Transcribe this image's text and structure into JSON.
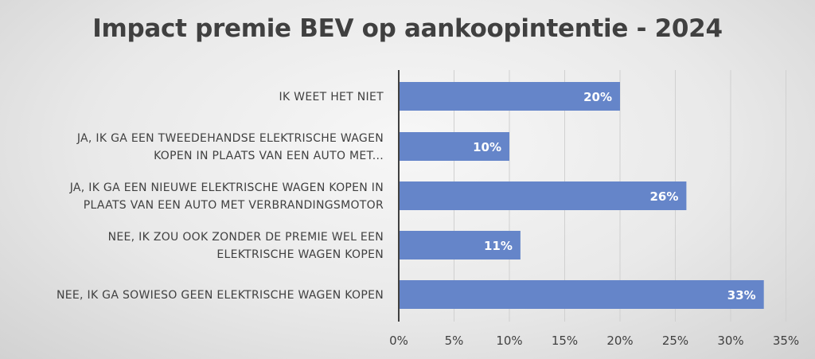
{
  "chart_data": {
    "type": "bar",
    "orientation": "horizontal",
    "title": "Impact premie BEV op aankoopintentie - 2024",
    "xlabel": "",
    "ylabel": "",
    "categories": [
      [
        "IK WEET HET NIET"
      ],
      [
        "JA, IK GA EEN TWEEDEHANDSE ELEKTRISCHE WAGEN",
        "KOPEN IN PLAATS VAN EEN AUTO MET..."
      ],
      [
        "JA, IK GA EEN NIEUWE ELEKTRISCHE WAGEN KOPEN IN",
        "PLAATS VAN EEN AUTO MET VERBRANDINGSMOTOR"
      ],
      [
        "NEE, IK ZOU OOK ZONDER DE PREMIE WEL EEN",
        "ELEKTRISCHE WAGEN KOPEN"
      ],
      [
        "NEE, IK GA SOWIESO GEEN ELEKTRISCHE WAGEN KOPEN"
      ]
    ],
    "values": [
      20,
      10,
      26,
      11,
      33
    ],
    "data_labels": [
      "20%",
      "10%",
      "26%",
      "11%",
      "33%"
    ],
    "xlim": [
      0,
      35
    ],
    "xticks": [
      0,
      5,
      10,
      15,
      20,
      25,
      30,
      35
    ],
    "xtick_labels": [
      "0%",
      "5%",
      "10%",
      "15%",
      "20%",
      "25%",
      "30%",
      "35%"
    ],
    "grid": "vertical",
    "legend": "none",
    "bar_color": "#6585c9",
    "grid_color": "#d0d0d0",
    "axis_color": "#404040"
  }
}
